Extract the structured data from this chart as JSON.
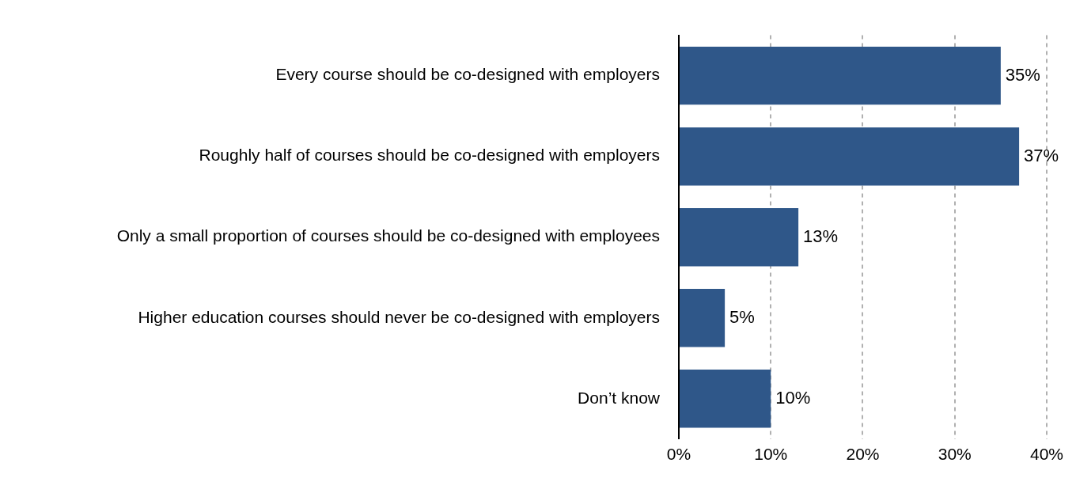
{
  "chart_data": {
    "type": "bar",
    "orientation": "horizontal",
    "categories": [
      "Every course should be co-designed with employers",
      "Roughly half of courses should be co-designed with employers",
      "Only a small proportion of courses should be co-designed with employees",
      "Higher education courses should never be co-designed with employers",
      "Don’t know"
    ],
    "values": [
      35,
      37,
      13,
      5,
      10
    ],
    "value_labels": [
      "35%",
      "37%",
      "13%",
      "5%",
      "10%"
    ],
    "color": "#2f5789",
    "xlim": [
      0,
      40
    ],
    "xticks": [
      {
        "value": 0,
        "label": "0%"
      },
      {
        "value": 10,
        "label": "10%"
      },
      {
        "value": 20,
        "label": "20%"
      },
      {
        "value": 30,
        "label": "30%"
      },
      {
        "value": 40,
        "label": "40%"
      }
    ],
    "grid": "x",
    "legend": false
  }
}
